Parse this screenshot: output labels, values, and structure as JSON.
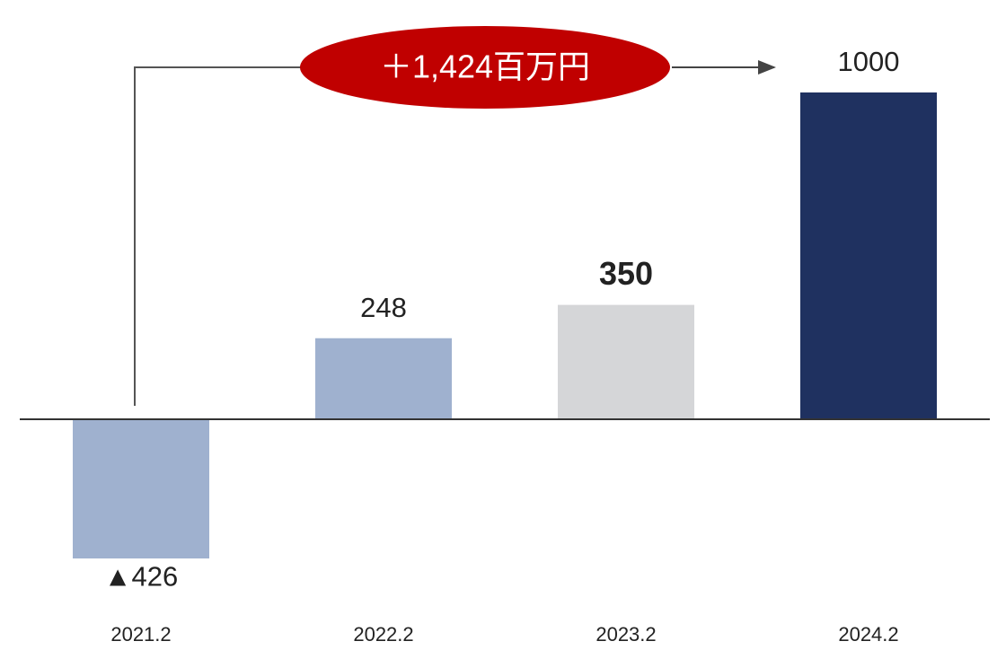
{
  "chart_data": {
    "type": "bar",
    "annotation": "＋1,424百万円",
    "categories": [
      "2021.2",
      "2022.2",
      "2023.2",
      "2024.2"
    ],
    "values": [
      -426,
      248,
      350,
      1000
    ],
    "value_labels": [
      "▲426",
      "248",
      "350",
      "1000"
    ],
    "colors": [
      "#9fb1cf",
      "#9fb1cf",
      "#d5d6d8",
      "#1f3160"
    ],
    "ylim": [
      -500,
      1100
    ]
  }
}
